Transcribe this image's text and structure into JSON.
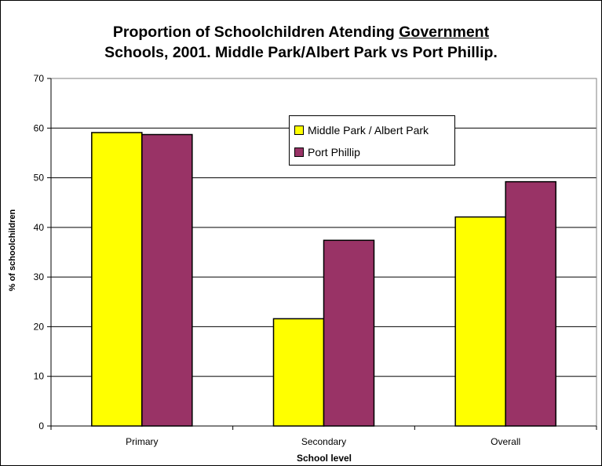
{
  "chart_data": {
    "type": "bar",
    "title_line1_prefix": "Proportion of Schoolchildren Atending ",
    "title_line1_underlined": "Government",
    "title_line2": "Schools, 2001. Middle Park/Albert Park vs Port Phillip.",
    "xlabel": "School level",
    "ylabel": "% of schoolchildren",
    "categories": [
      "Primary",
      "Secondary",
      "Overall"
    ],
    "ylim": [
      0,
      70
    ],
    "yticks": [
      0,
      10,
      20,
      30,
      40,
      50,
      60,
      70
    ],
    "grid": true,
    "legend_position": "top-center",
    "series": [
      {
        "name": "Middle Park / Albert Park",
        "values": [
          59.1,
          21.6,
          42.1
        ],
        "color": "#FFFF00"
      },
      {
        "name": "Port Phillip",
        "values": [
          58.7,
          37.4,
          49.2
        ],
        "color": "#993366"
      }
    ]
  }
}
